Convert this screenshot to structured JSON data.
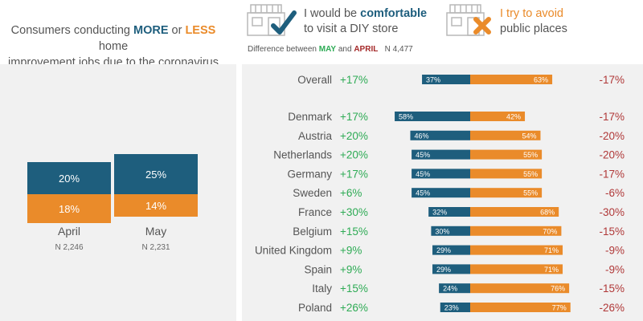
{
  "header": {
    "left_title": {
      "prefix": "Consumers conducting ",
      "more": "MORE",
      "middle": " or ",
      "less": "LESS",
      "suffix": " home",
      "line2": "improvement jobs due to the coronavirus"
    },
    "comfortable": {
      "prefix": "I would be ",
      "highlight": "comfortable",
      "line2": "to visit a DIY store",
      "icon": "checkmark-icon"
    },
    "avoid": {
      "line1": "I try to avoid",
      "line2": "public places",
      "icon": "cross-icon"
    },
    "difference_note": {
      "prefix": "Difference between ",
      "may": "MAY",
      "and": " and ",
      "april": "APRIL",
      "n": "N 4,477"
    }
  },
  "colors": {
    "blue": "#1e5e7d",
    "orange": "#ea8b2a",
    "green": "#2eab55",
    "red": "#b03838"
  },
  "chart_data": [
    {
      "type": "bar",
      "title": "Consumers conducting MORE or LESS home improvement jobs due to the coronavirus",
      "categories": [
        "April",
        "May"
      ],
      "n_labels": [
        "N 2,246",
        "N 2,231"
      ],
      "series": [
        {
          "name": "MORE",
          "values": [
            20,
            25
          ],
          "labels": [
            "20%",
            "25%"
          ]
        },
        {
          "name": "LESS",
          "values": [
            18,
            14
          ],
          "labels": [
            "18%",
            "14%"
          ]
        }
      ]
    },
    {
      "type": "bar",
      "orientation": "horizontal-diverging",
      "categories": [
        "Overall",
        "Denmark",
        "Austria",
        "Netherlands",
        "Germany",
        "Sweden",
        "France",
        "Belgium",
        "United Kingdom",
        "Spain",
        "Italy",
        "Poland"
      ],
      "series": [
        {
          "name": "I would be comfortable to visit a DIY store",
          "values": [
            37,
            58,
            46,
            45,
            45,
            45,
            32,
            30,
            29,
            29,
            24,
            23
          ],
          "labels": [
            "37%",
            "58%",
            "46%",
            "45%",
            "45%",
            "45%",
            "32%",
            "30%",
            "29%",
            "29%",
            "24%",
            "23%"
          ]
        },
        {
          "name": "I try to avoid public places",
          "values": [
            63,
            42,
            54,
            55,
            55,
            55,
            68,
            70,
            71,
            71,
            76,
            77
          ],
          "labels": [
            "63%",
            "42%",
            "54%",
            "55%",
            "55%",
            "55%",
            "68%",
            "70%",
            "71%",
            "71%",
            "76%",
            "77%"
          ]
        }
      ],
      "comfortable_change": [
        "+17%",
        "+17%",
        "+20%",
        "+20%",
        "+17%",
        "+6%",
        "+30%",
        "+15%",
        "+9%",
        "+9%",
        "+15%",
        "+26%"
      ],
      "avoid_change": [
        "-17%",
        "-17%",
        "-20%",
        "-20%",
        "-17%",
        "-6%",
        "-30%",
        "-15%",
        "-9%",
        "-9%",
        "-15%",
        "-26%"
      ]
    }
  ]
}
